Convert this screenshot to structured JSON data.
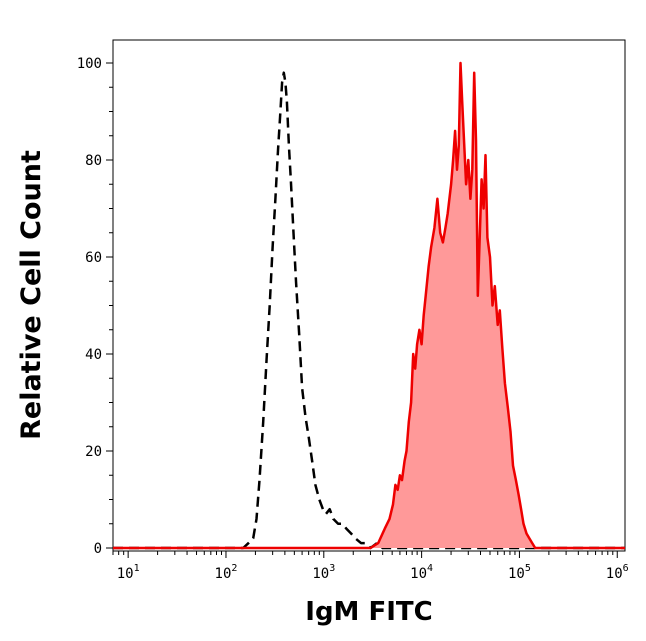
{
  "chart_data": {
    "type": "area",
    "xlabel": "IgM FITC",
    "ylabel": "Relative Cell Count",
    "x_scale": "log10",
    "xlim": [
      7,
      1200000
    ],
    "ylim": [
      0,
      105
    ],
    "x_ticks": [
      {
        "base": "10",
        "exp": "1",
        "value": 10
      },
      {
        "base": "10",
        "exp": "2",
        "value": 100
      },
      {
        "base": "10",
        "exp": "3",
        "value": 1000
      },
      {
        "base": "10",
        "exp": "4",
        "value": 10000
      },
      {
        "base": "10",
        "exp": "5",
        "value": 100000
      },
      {
        "base": "10",
        "exp": "6",
        "value": 1000000
      }
    ],
    "y_ticks": [
      {
        "label": "0",
        "value": 0
      },
      {
        "label": "20",
        "value": 20
      },
      {
        "label": "40",
        "value": 40
      },
      {
        "label": "60",
        "value": 60
      },
      {
        "label": "80",
        "value": 80
      },
      {
        "label": "100",
        "value": 100
      }
    ],
    "series": [
      {
        "style": "dashed",
        "color": "#000000",
        "fill": "none",
        "points": [
          [
            7,
            0
          ],
          [
            100,
            0
          ],
          [
            150,
            0
          ],
          [
            170,
            1
          ],
          [
            190,
            2
          ],
          [
            205,
            6
          ],
          [
            220,
            14
          ],
          [
            240,
            26
          ],
          [
            260,
            39
          ],
          [
            280,
            50
          ],
          [
            300,
            62
          ],
          [
            320,
            72
          ],
          [
            340,
            82
          ],
          [
            360,
            90
          ],
          [
            375,
            96
          ],
          [
            390,
            98
          ],
          [
            405,
            96
          ],
          [
            420,
            92
          ],
          [
            440,
            83
          ],
          [
            460,
            76
          ],
          [
            490,
            65
          ],
          [
            520,
            55
          ],
          [
            560,
            44
          ],
          [
            600,
            33
          ],
          [
            650,
            27
          ],
          [
            700,
            23
          ],
          [
            760,
            18
          ],
          [
            820,
            13
          ],
          [
            900,
            10
          ],
          [
            980,
            8
          ],
          [
            1050,
            7
          ],
          [
            1150,
            8
          ],
          [
            1250,
            6
          ],
          [
            1400,
            5
          ],
          [
            1550,
            5
          ],
          [
            1700,
            4
          ],
          [
            1900,
            3
          ],
          [
            2100,
            2
          ],
          [
            2400,
            1
          ],
          [
            2700,
            1
          ],
          [
            3000,
            0
          ],
          [
            3500,
            1
          ],
          [
            4000,
            0
          ],
          [
            1200000,
            0
          ]
        ]
      },
      {
        "style": "solid",
        "color": "#ee0000",
        "fill": "#ff9999",
        "points": [
          [
            7,
            0
          ],
          [
            3000,
            0
          ],
          [
            3600,
            1
          ],
          [
            4200,
            4
          ],
          [
            4700,
            6
          ],
          [
            5100,
            9
          ],
          [
            5400,
            13
          ],
          [
            5700,
            12
          ],
          [
            6000,
            15
          ],
          [
            6300,
            14
          ],
          [
            6700,
            18
          ],
          [
            7000,
            20
          ],
          [
            7400,
            26
          ],
          [
            7800,
            30
          ],
          [
            8200,
            40
          ],
          [
            8600,
            37
          ],
          [
            9000,
            42
          ],
          [
            9500,
            45
          ],
          [
            10000,
            42
          ],
          [
            10500,
            48
          ],
          [
            11000,
            52
          ],
          [
            11800,
            58
          ],
          [
            12500,
            62
          ],
          [
            13500,
            66
          ],
          [
            14500,
            72
          ],
          [
            15500,
            65
          ],
          [
            16500,
            63
          ],
          [
            17500,
            66
          ],
          [
            18500,
            69
          ],
          [
            20000,
            75
          ],
          [
            21000,
            80
          ],
          [
            22000,
            86
          ],
          [
            23000,
            78
          ],
          [
            24000,
            83
          ],
          [
            25000,
            100
          ],
          [
            26000,
            92
          ],
          [
            27000,
            85
          ],
          [
            28500,
            75
          ],
          [
            30000,
            80
          ],
          [
            31500,
            72
          ],
          [
            33000,
            78
          ],
          [
            34500,
            98
          ],
          [
            36000,
            84
          ],
          [
            37500,
            52
          ],
          [
            39000,
            62
          ],
          [
            41000,
            76
          ],
          [
            43000,
            70
          ],
          [
            45000,
            81
          ],
          [
            47000,
            64
          ],
          [
            50000,
            60
          ],
          [
            53000,
            50
          ],
          [
            56000,
            54
          ],
          [
            60000,
            46
          ],
          [
            63000,
            49
          ],
          [
            67000,
            41
          ],
          [
            71000,
            34
          ],
          [
            76000,
            29
          ],
          [
            81000,
            24
          ],
          [
            86000,
            17
          ],
          [
            92000,
            14
          ],
          [
            98000,
            11
          ],
          [
            104000,
            8
          ],
          [
            110000,
            5
          ],
          [
            118000,
            3
          ],
          [
            126000,
            2
          ],
          [
            135000,
            1
          ],
          [
            145000,
            0
          ],
          [
            1200000,
            0
          ]
        ]
      }
    ]
  }
}
